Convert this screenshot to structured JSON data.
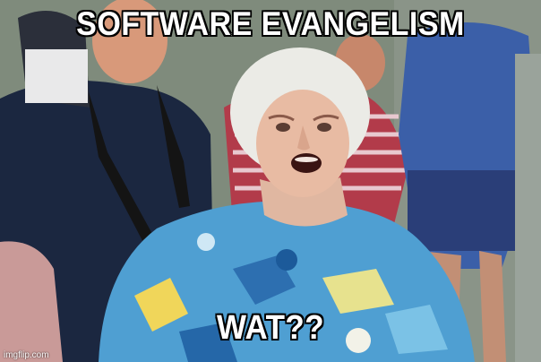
{
  "meme": {
    "top_caption": "SOFTWARE EVANGELISM",
    "bottom_caption": "WAT??",
    "watermark": "imgflip.com"
  }
}
